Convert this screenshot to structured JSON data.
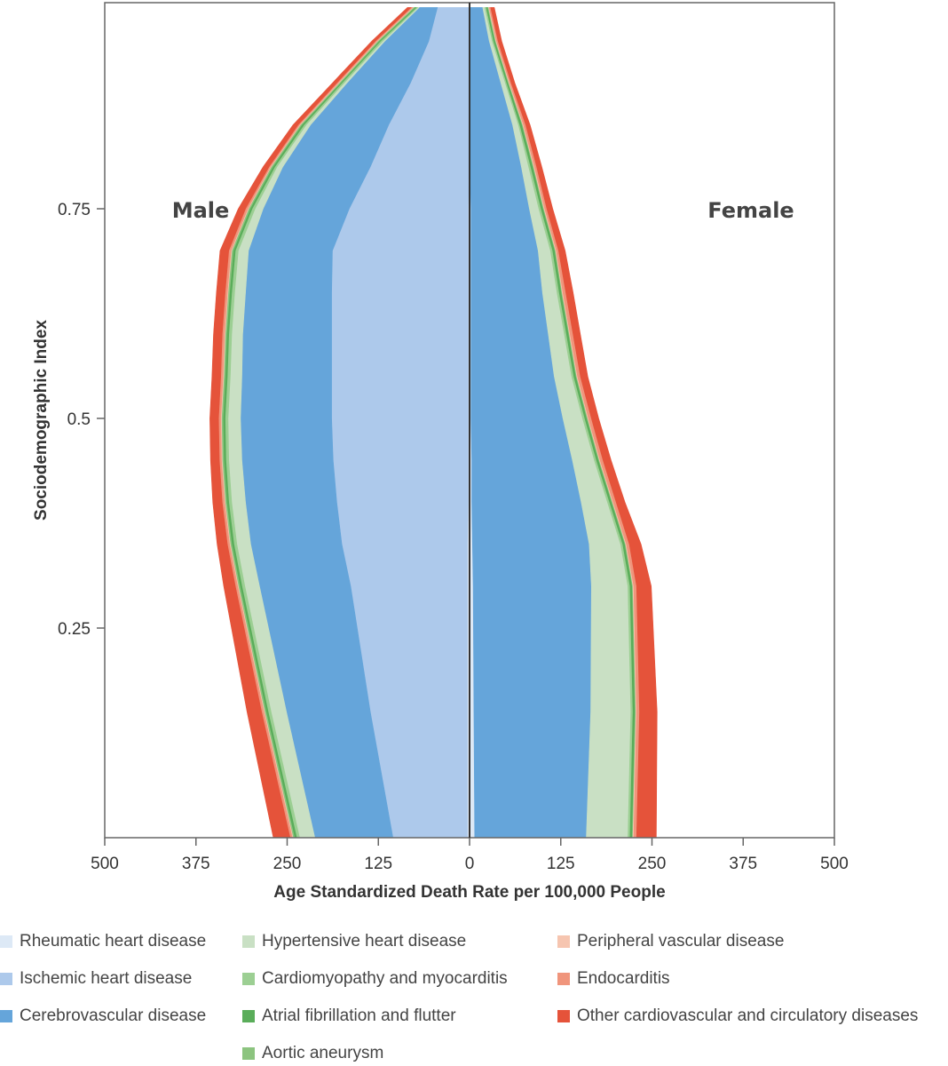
{
  "chart_data": {
    "type": "area",
    "orientation": "horizontal-stacked-mirrored",
    "xlabel": "Age Standardized Death Rate per 100,000 People",
    "ylabel": "Sociodemographic Index",
    "panels": [
      "Male",
      "Female"
    ],
    "xlim": [
      -500,
      500
    ],
    "x_tick_labels": [
      "500",
      "375",
      "250",
      "125",
      "0",
      "125",
      "250",
      "375",
      "500"
    ],
    "x_tick_values": [
      -500,
      -375,
      -250,
      -125,
      0,
      125,
      250,
      375,
      500
    ],
    "ylim": [
      0.0,
      0.99
    ],
    "y_tick_labels": [
      "0.25",
      "0.5",
      "0.75"
    ],
    "y_tick_values": [
      0.25,
      0.5,
      0.75
    ],
    "sdi": [
      0.0,
      0.15,
      0.3,
      0.35,
      0.4,
      0.45,
      0.5,
      0.55,
      0.6,
      0.65,
      0.7,
      0.75,
      0.8,
      0.85,
      0.9,
      0.95,
      0.99
    ],
    "series": [
      {
        "name": "Rheumatic heart disease",
        "color": "#dde9f6",
        "male": [
          3,
          3,
          3,
          3,
          2,
          2,
          2,
          2,
          2,
          2,
          2,
          2,
          1,
          1,
          1,
          1,
          1
        ],
        "female": [
          7,
          6,
          5,
          4,
          3,
          3,
          2,
          2,
          2,
          2,
          2,
          2,
          1,
          1,
          1,
          1,
          1
        ]
      },
      {
        "name": "Ischemic heart disease",
        "color": "#adc9eb",
        "male": [
          102,
          133,
          160,
          172,
          180,
          185,
          187,
          187,
          187,
          187,
          186,
          163,
          135,
          110,
          80,
          55,
          43
        ]
      },
      {
        "name": "Cerebrovascular disease",
        "color": "#65a5da",
        "male": [
          107,
          115,
          125,
          125,
          125,
          125,
          125,
          123,
          122,
          118,
          115,
          118,
          120,
          107,
          87,
          60,
          25
        ],
        "female": [
          153,
          160,
          162,
          160,
          150,
          138,
          126,
          114,
          106,
          98,
          92,
          80,
          70,
          58,
          42,
          26,
          17
        ]
      },
      {
        "name": "Hypertensive heart disease",
        "color": "#c9e0c4",
        "male": [
          21,
          21,
          20,
          19,
          19,
          18,
          17,
          16,
          15,
          15,
          14,
          11,
          8,
          6,
          4,
          3,
          2
        ],
        "female": [
          57,
          55,
          50,
          43,
          36,
          30,
          27,
          24,
          22,
          20,
          17,
          13,
          10,
          8,
          6,
          4,
          3
        ]
      },
      {
        "name": "Cardiomyopathy and myocarditis",
        "color": "#9ccf93",
        "male": [
          4,
          4,
          4,
          4,
          4,
          4,
          4,
          4,
          4,
          4,
          4,
          4,
          3,
          3,
          3,
          3,
          2
        ],
        "female": [
          3,
          3,
          3,
          3,
          3,
          3,
          3,
          3,
          3,
          3,
          3,
          3,
          3,
          2,
          2,
          2,
          2
        ]
      },
      {
        "name": "Atrial fibrillation and flutter",
        "color": "#5aad5a",
        "male": [
          3,
          3,
          3,
          3,
          3,
          3,
          3,
          3,
          3,
          3,
          3,
          3,
          3,
          3,
          2,
          2,
          2
        ],
        "female": [
          3,
          3,
          3,
          3,
          3,
          3,
          3,
          3,
          3,
          3,
          3,
          3,
          3,
          3,
          2,
          2,
          2
        ]
      },
      {
        "name": "Aortic aneurysm",
        "color": "#8cc47f",
        "male": [
          2,
          2,
          2,
          2,
          2,
          2,
          2,
          2,
          2,
          2,
          2,
          2,
          2,
          2,
          2,
          2,
          2
        ],
        "female": [
          1,
          1,
          1,
          1,
          1,
          1,
          1,
          1,
          1,
          1,
          1,
          1,
          1,
          1,
          1,
          1,
          1
        ]
      },
      {
        "name": "Peripheral vascular disease",
        "color": "#f6c5b0",
        "male": [
          1,
          1,
          1,
          1,
          1,
          1,
          1,
          1,
          1,
          1,
          1,
          1,
          1,
          1,
          1,
          1,
          1
        ],
        "female": [
          1,
          1,
          1,
          1,
          1,
          1,
          1,
          1,
          1,
          1,
          1,
          1,
          1,
          1,
          1,
          1,
          1
        ]
      },
      {
        "name": "Endocarditis",
        "color": "#f0957c",
        "male": [
          3,
          3,
          3,
          3,
          3,
          3,
          3,
          3,
          3,
          3,
          3,
          3,
          2,
          2,
          2,
          2,
          2
        ],
        "female": [
          4,
          4,
          4,
          4,
          4,
          4,
          4,
          4,
          4,
          4,
          3,
          3,
          3,
          3,
          2,
          2,
          2
        ]
      },
      {
        "name": "Other cardiovascular and circulatory diseases",
        "color": "#e5533a",
        "male": [
          23,
          20,
          16,
          14,
          13,
          12,
          12,
          12,
          12,
          12,
          12,
          10,
          8,
          7,
          6,
          5,
          5
        ],
        "female": [
          27,
          24,
          20,
          16,
          12,
          11,
          10,
          10,
          10,
          10,
          9,
          8,
          7,
          6,
          5,
          5,
          5
        ]
      }
    ],
    "grid": false,
    "legend_position": "bottom"
  },
  "labels": {
    "male": "Male",
    "female": "Female"
  },
  "legend": [
    {
      "label": "Rheumatic heart disease",
      "color": "#dde9f6"
    },
    {
      "label": "Ischemic heart disease",
      "color": "#adc9eb"
    },
    {
      "label": "Cerebrovascular disease",
      "color": "#65a5da"
    },
    {
      "label": "Hypertensive heart disease",
      "color": "#c9e0c4"
    },
    {
      "label": "Cardiomyopathy and myocarditis",
      "color": "#9ccf93"
    },
    {
      "label": "Atrial fibrillation and flutter",
      "color": "#5aad5a"
    },
    {
      "label": "Aortic aneurysm",
      "color": "#8cc47f"
    },
    {
      "label": "Peripheral vascular disease",
      "color": "#f6c5b0"
    },
    {
      "label": "Endocarditis",
      "color": "#f0957c"
    },
    {
      "label": "Other cardiovascular and circulatory diseases",
      "color": "#e5533a"
    }
  ]
}
